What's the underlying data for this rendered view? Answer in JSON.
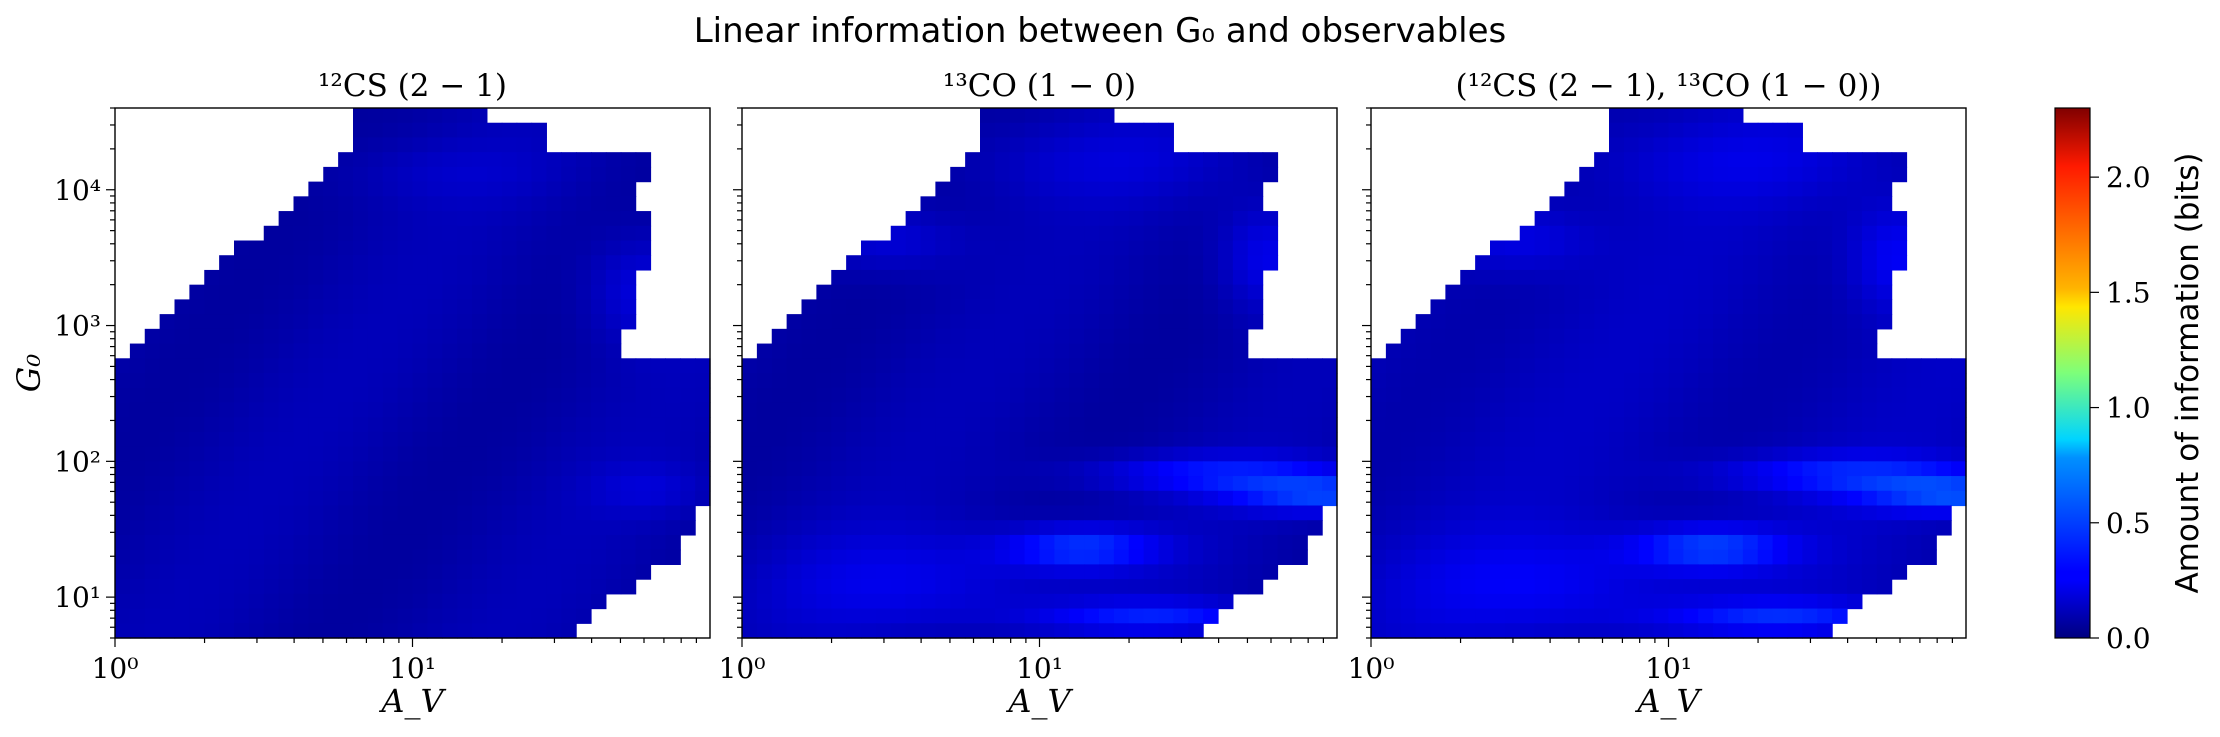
{
  "figure": {
    "suptitle": "Linear information between G₀ and observables"
  },
  "chart_data": {
    "type": "heatmap",
    "x_scale": "log",
    "y_scale": "log",
    "xlim": [
      1,
      100
    ],
    "ylim": [
      5,
      40000
    ],
    "x_ticks": [
      {
        "value": 1,
        "label": "10⁰"
      },
      {
        "value": 10,
        "label": "10¹"
      }
    ],
    "y_ticks": [
      {
        "value": 10,
        "label": "10¹"
      },
      {
        "value": 100,
        "label": "10²"
      },
      {
        "value": 1000,
        "label": "10³"
      },
      {
        "value": 10000,
        "label": "10⁴"
      }
    ],
    "xlabel": "A_V",
    "ylabel": "G₀",
    "panels": [
      {
        "title": "¹²CS (2 − 1)",
        "id": "cs",
        "peak": 0.35
      },
      {
        "title": "¹³CO (1 − 0)",
        "id": "co",
        "peak": 0.75
      },
      {
        "title": "(¹²CS (2 − 1), ¹³CO (1 − 0))",
        "id": "both",
        "peak": 0.8
      }
    ],
    "colorbar": {
      "label": "Amount of information (bits)",
      "range": [
        0.0,
        2.3
      ],
      "colormap": "jet",
      "ticks": [
        {
          "value": 0.0,
          "label": "0.0"
        },
        {
          "value": 0.5,
          "label": "0.5"
        },
        {
          "value": 1.0,
          "label": "1.0"
        },
        {
          "value": 1.5,
          "label": "1.5"
        },
        {
          "value": 2.0,
          "label": "2.0"
        }
      ]
    },
    "description": "Heatmap of linear information (bits) over the (A_V, G0) grid; values mostly 0–0.3 bits with enhanced regions at high A_V."
  }
}
